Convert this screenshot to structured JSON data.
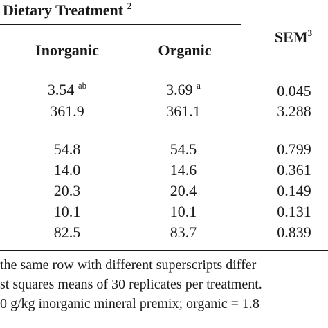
{
  "table": {
    "group_title": "Dietary Treatment",
    "group_title_sup": "2",
    "columns": {
      "inorganic": "Inorganic",
      "organic": "Organic",
      "sem": "SEM",
      "sem_sup": "3"
    },
    "rows": [
      {
        "inorganic": "3.54",
        "inorganic_sup": "ab",
        "organic": "3.69",
        "organic_sup": "a",
        "sem": "0.045"
      },
      {
        "inorganic": "361.9",
        "organic": "361.1",
        "sem": "3.288"
      },
      {
        "inorganic": "54.8",
        "organic": "54.5",
        "sem": "0.799"
      },
      {
        "inorganic": "14.0",
        "organic": "14.6",
        "sem": "0.361"
      },
      {
        "inorganic": "20.3",
        "organic": "20.4",
        "sem": "0.149"
      },
      {
        "inorganic": "10.1",
        "organic": "10.1",
        "sem": "0.131"
      },
      {
        "inorganic": "82.5",
        "organic": "83.7",
        "sem": "0.839"
      }
    ]
  },
  "footnotes": [
    "the same row with different superscripts differ",
    "st squares means of 30 replicates per treatment.",
    "0 g/kg inorganic mineral premix; organic = 1.8"
  ]
}
